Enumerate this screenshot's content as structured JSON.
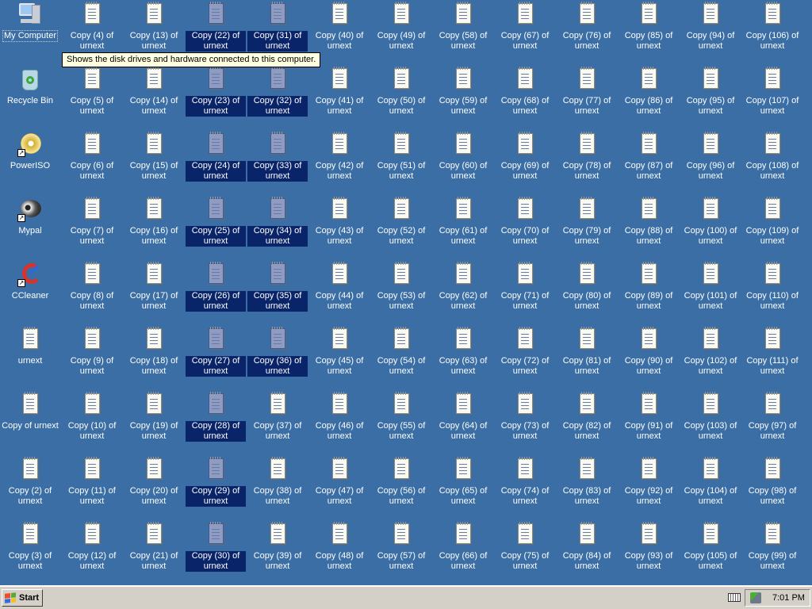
{
  "desktop": {
    "columns": [
      [
        {
          "label": "My Computer",
          "icon": "my-computer",
          "focus": true
        },
        {
          "label": "Recycle Bin",
          "icon": "recycle-bin"
        },
        {
          "label": "PowerISO",
          "icon": "poweriso",
          "shortcut": true
        },
        {
          "label": "Mypal",
          "icon": "mypal",
          "shortcut": true
        },
        {
          "label": "CCleaner",
          "icon": "ccleaner",
          "shortcut": true
        },
        {
          "label": "urnext",
          "icon": "text-file"
        },
        {
          "label": "Copy of urnext",
          "icon": "text-file"
        },
        {
          "label": "Copy (2) of urnext",
          "icon": "text-file"
        },
        {
          "label": "Copy (3) of urnext",
          "icon": "text-file"
        }
      ],
      [
        4,
        5,
        6,
        7,
        8,
        9,
        10,
        11,
        12
      ],
      [
        13,
        14,
        15,
        16,
        17,
        18,
        19,
        20,
        21
      ],
      [
        22,
        23,
        24,
        25,
        26,
        27,
        28,
        29,
        30
      ],
      [
        31,
        32,
        33,
        34,
        35,
        36,
        37,
        38,
        39
      ],
      [
        40,
        41,
        42,
        43,
        44,
        45,
        46,
        47,
        48
      ],
      [
        49,
        50,
        51,
        52,
        53,
        54,
        55,
        56,
        57
      ],
      [
        58,
        59,
        60,
        61,
        62,
        63,
        64,
        65,
        66
      ],
      [
        67,
        68,
        69,
        70,
        71,
        72,
        73,
        74,
        75
      ],
      [
        76,
        77,
        78,
        79,
        80,
        81,
        82,
        83,
        84
      ],
      [
        85,
        86,
        87,
        88,
        89,
        90,
        91,
        92,
        93
      ],
      [
        94,
        95,
        96,
        100,
        101,
        102,
        103,
        104,
        105
      ],
      [
        106,
        107,
        108,
        109,
        110,
        111,
        97,
        98,
        99
      ]
    ],
    "copy_label_template": "Copy ({n}) of urnext",
    "selected_copies": [
      22,
      23,
      24,
      25,
      26,
      27,
      28,
      29,
      30,
      31,
      32,
      33,
      34,
      35,
      36
    ]
  },
  "tooltip": "Shows the disk drives and hardware connected to this computer.",
  "taskbar": {
    "start_label": "Start",
    "clock": "7:01 PM"
  },
  "colors": {
    "desktop": "#3a6ea5",
    "selection": "#0a246a",
    "taskbar": "#d4d0c8"
  }
}
